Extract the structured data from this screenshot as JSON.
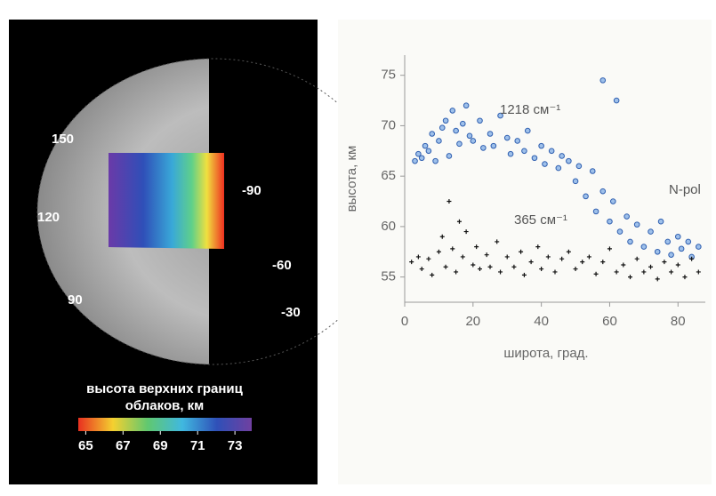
{
  "venus_panel": {
    "longitude_labels": [
      "150",
      "120",
      "90"
    ],
    "latitude_labels": [
      "-90",
      "-60",
      "-30"
    ],
    "colorbar": {
      "title": [
        "высота верхних границ",
        "облаков, км"
      ],
      "lim": [
        64.6,
        73.9
      ],
      "ticks": [
        65,
        67,
        69,
        71,
        73
      ]
    }
  },
  "chart_data": {
    "type": "scatter",
    "xlabel": "широта, град.",
    "ylabel": "высота, км",
    "xlim": [
      0,
      88
    ],
    "ylim": [
      52.5,
      77
    ],
    "xticks": [
      0,
      20,
      40,
      60,
      80
    ],
    "yticks": [
      55,
      60,
      65,
      70,
      75
    ],
    "annotations": [
      "N-pol"
    ],
    "series": [
      {
        "name": "1218 см⁻¹",
        "color": "#2f5fb0",
        "x": [
          3,
          4,
          5,
          6,
          7,
          8,
          9,
          10,
          11,
          12,
          13,
          14,
          15,
          16,
          17,
          18,
          19,
          20,
          22,
          23,
          25,
          26,
          28,
          30,
          31,
          33,
          35,
          36,
          38,
          40,
          41,
          43,
          45,
          46,
          48,
          50,
          51,
          53,
          55,
          56,
          58,
          58,
          60,
          61,
          62,
          63,
          65,
          66,
          68,
          70,
          72,
          74,
          75,
          77,
          78,
          80,
          81,
          83,
          84,
          86
        ],
        "values": [
          66.5,
          67.2,
          66.8,
          68,
          67.5,
          69.2,
          66.5,
          68.5,
          69.8,
          70.5,
          67,
          71.5,
          69.5,
          68.2,
          70.2,
          72,
          69,
          68.5,
          70.5,
          67.8,
          69.2,
          68,
          71,
          68.8,
          67.2,
          68.5,
          67.5,
          69.5,
          66.8,
          68,
          66.2,
          67.5,
          65.8,
          67,
          66.5,
          64.5,
          66,
          63,
          65.5,
          61.5,
          74.5,
          63.5,
          60.5,
          62.5,
          72.5,
          59.5,
          61,
          58.5,
          60.2,
          58,
          59.5,
          57.5,
          60.5,
          58.5,
          57.2,
          59,
          57.8,
          58.5,
          57,
          58
        ]
      },
      {
        "name": "365 см⁻¹",
        "color": "#111111",
        "x": [
          2,
          4,
          5,
          7,
          8,
          10,
          11,
          12,
          13,
          14,
          15,
          16,
          17,
          18,
          20,
          21,
          22,
          24,
          25,
          27,
          28,
          30,
          32,
          34,
          35,
          37,
          39,
          40,
          42,
          44,
          46,
          48,
          50,
          52,
          54,
          56,
          58,
          60,
          62,
          64,
          66,
          68,
          70,
          72,
          74,
          76,
          78,
          80,
          82,
          84,
          86
        ],
        "values": [
          56.5,
          57,
          55.8,
          56.8,
          55.2,
          57.5,
          59,
          56,
          62.5,
          57.8,
          55.5,
          60.5,
          57,
          59.5,
          56.2,
          58,
          55.8,
          57.2,
          56,
          58.5,
          55.5,
          57,
          56,
          57.5,
          55.2,
          56.5,
          58,
          55.8,
          57,
          55.5,
          56.8,
          57.5,
          55.8,
          56.5,
          57,
          55.3,
          56.5,
          57.8,
          55.5,
          56.2,
          55,
          56.8,
          55.5,
          56,
          54.8,
          56.5,
          55.5,
          56.2,
          55,
          56.8,
          55.5
        ]
      }
    ]
  }
}
